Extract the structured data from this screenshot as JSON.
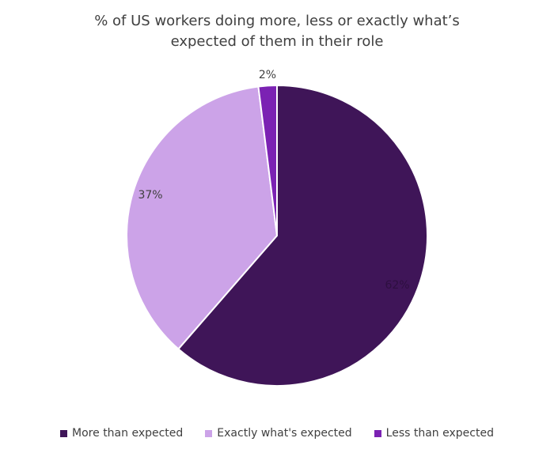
{
  "chart_data": {
    "type": "pie",
    "title_lines": [
      "% of US workers doing more, less or exactly what’s",
      "expected of them in their role"
    ],
    "slices": [
      {
        "label": "More than expected",
        "value": 62,
        "value_label": "62%",
        "color": "#3f1558",
        "label_color": "#2e0f40"
      },
      {
        "label": "Exactly what's expected",
        "value": 37,
        "value_label": "37%",
        "color": "#cca3e8",
        "label_color": "#404040"
      },
      {
        "label": "Less than expected",
        "value": 2,
        "value_label": "2%",
        "color": "#7b22b3",
        "label_color": "#404040"
      }
    ],
    "start": "12 o'clock",
    "direction": "clockwise",
    "legend_position": "bottom"
  }
}
